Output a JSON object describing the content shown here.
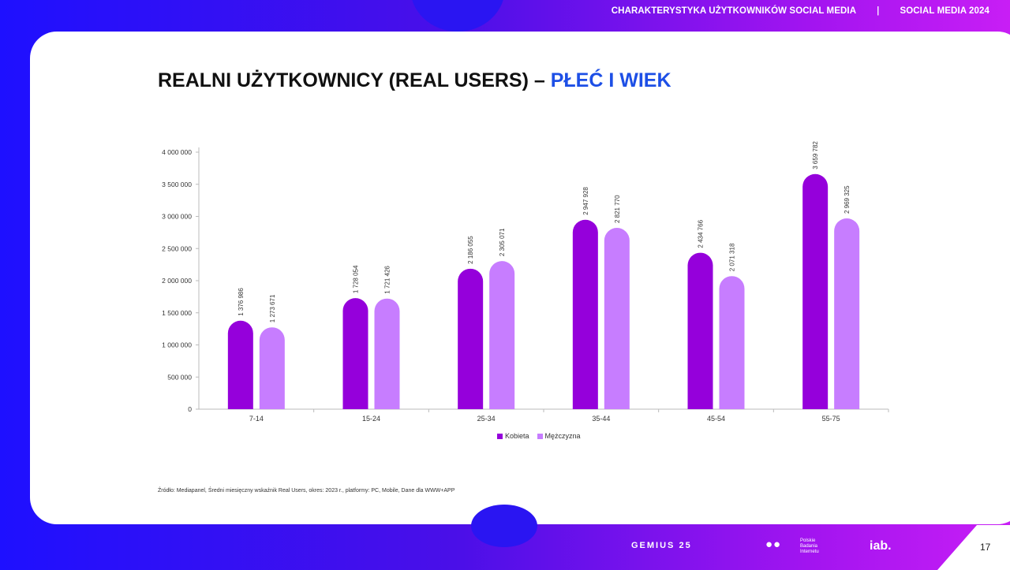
{
  "header": {
    "section": "CHARAKTERYSTYKA UŻYTKOWNIKÓW SOCIAL MEDIA",
    "separator": "|",
    "report": "SOCIAL MEDIA 2024"
  },
  "title": {
    "main": "REALNI UŻYTKOWNICY (REAL USERS) –",
    "accent": "PŁEĆ I WIEK"
  },
  "source": "Źródło: Mediapanel, Średni miesięczny wskaźnik Real Users, okres: 2023 r., platformy: PC, Mobile, Dane dla WWW+APP",
  "footer": {
    "page_number": "17",
    "logo_gemius": "GEMIUS 25",
    "logo_pbi_text": "Polskie Badania Internetu",
    "logo_iab": "iab."
  },
  "colors": {
    "kobieta": "#9500db",
    "mezczyzna": "#c77dff",
    "accent": "#1d4fe6"
  },
  "chart_data": {
    "type": "bar",
    "categories": [
      "7-14",
      "15-24",
      "25-34",
      "35-44",
      "45-54",
      "55-75"
    ],
    "series": [
      {
        "name": "Kobieta",
        "values": [
          1376986,
          1728054,
          2186055,
          2947928,
          2434766,
          3659782
        ],
        "labels": [
          "1 376 986",
          "1 728 054",
          "2 186 055",
          "2 947 928",
          "2 434 766",
          "3 659 782"
        ]
      },
      {
        "name": "Mężczyzna",
        "values": [
          1273671,
          1721426,
          2305071,
          2821770,
          2071318,
          2969325
        ],
        "labels": [
          "1 273 671",
          "1 721 426",
          "2 305 071",
          "2 821 770",
          "2 071 318",
          "2 969 325"
        ]
      }
    ],
    "ylim": [
      0,
      4000000
    ],
    "yticks": [
      0,
      500000,
      1000000,
      1500000,
      2000000,
      2500000,
      3000000,
      3500000,
      4000000
    ],
    "ytick_labels": [
      "0",
      "500 000",
      "1 000 000",
      "1 500 000",
      "2 000 000",
      "2 500 000",
      "3 000 000",
      "3 500 000",
      "4 000 000"
    ],
    "legend": "bottom-center",
    "grid": false
  }
}
